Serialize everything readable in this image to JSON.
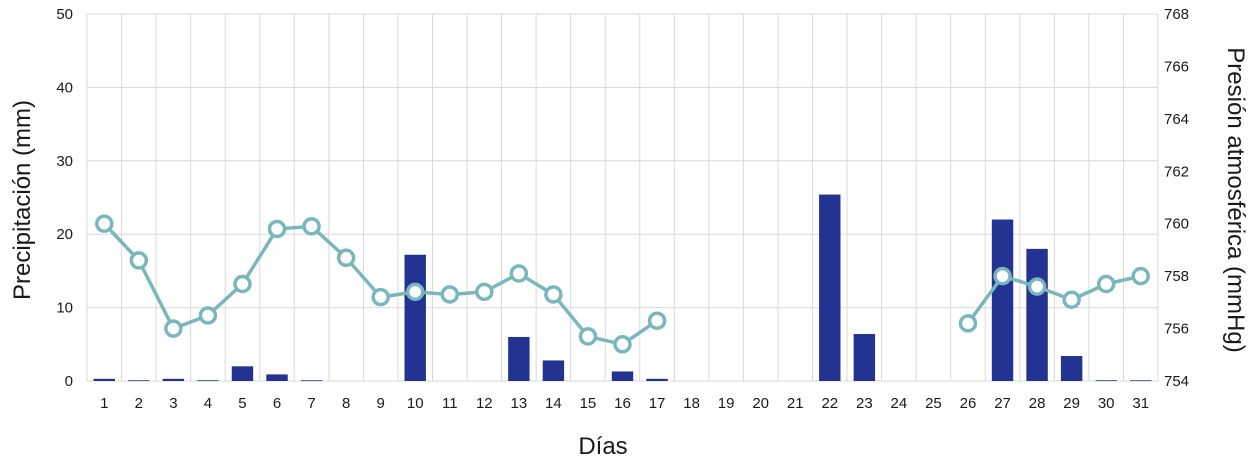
{
  "chart_data": {
    "type": "bar+line",
    "x": [
      1,
      2,
      3,
      4,
      5,
      6,
      7,
      8,
      9,
      10,
      11,
      12,
      13,
      14,
      15,
      16,
      17,
      18,
      19,
      20,
      21,
      22,
      23,
      24,
      25,
      26,
      27,
      28,
      29,
      30,
      31
    ],
    "xlabel": "Días",
    "ylabel_left": "Precipitación (mm)",
    "ylabel_right": "Presión atmosférica (mmHg)",
    "ylim_left": [
      0,
      50
    ],
    "yticks_left": [
      0,
      10,
      20,
      30,
      40,
      50
    ],
    "ylim_right": [
      754,
      768
    ],
    "yticks_right": [
      754,
      756,
      758,
      760,
      762,
      764,
      766,
      768
    ],
    "grid": true,
    "series": [
      {
        "type": "bar",
        "axis": "left",
        "color": "#233391",
        "values": [
          0.3,
          0.1,
          0.3,
          0.1,
          2.0,
          0.9,
          0.1,
          0,
          0,
          17.2,
          0,
          0,
          6.0,
          2.8,
          0,
          1.3,
          0.3,
          0,
          0,
          0,
          0,
          25.4,
          6.4,
          0,
          0,
          0,
          22.0,
          18.0,
          3.4,
          0.1,
          0.1
        ]
      },
      {
        "type": "line",
        "axis": "right",
        "color": "#7ab7bd",
        "values": [
          760.0,
          758.6,
          756.0,
          756.5,
          757.7,
          759.8,
          759.9,
          758.7,
          757.2,
          757.4,
          757.3,
          757.4,
          758.1,
          757.3,
          755.7,
          755.4,
          756.3,
          null,
          null,
          null,
          null,
          null,
          null,
          null,
          null,
          756.2,
          758.0,
          757.6,
          757.1,
          757.7,
          758.0
        ]
      }
    ]
  }
}
